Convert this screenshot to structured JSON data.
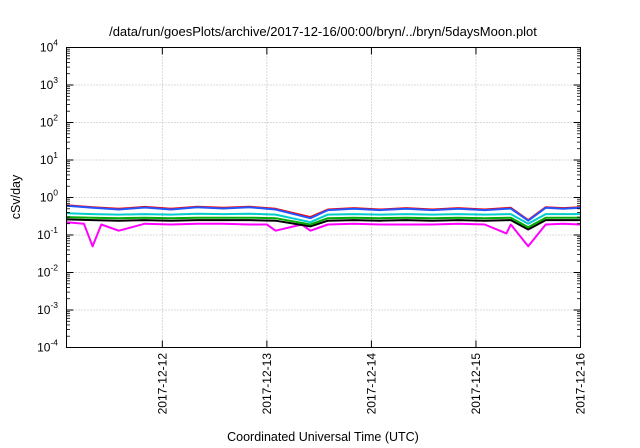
{
  "chart_data": {
    "type": "line",
    "title": "/data/run/goesPlots/archive/2017-12-16/00:00/bryn/../bryn/5daysMoon.plot",
    "xlabel": "Coordinated Universal Time (UTC)",
    "ylabel": "cSv/day",
    "y_scale": "log",
    "ylim": [
      0.0001,
      10000
    ],
    "y_ticks": [
      {
        "value": 0.0001,
        "base": "10",
        "exp": "-4"
      },
      {
        "value": 0.001,
        "base": "10",
        "exp": "-3"
      },
      {
        "value": 0.01,
        "base": "10",
        "exp": "-2"
      },
      {
        "value": 0.1,
        "base": "10",
        "exp": "-1"
      },
      {
        "value": 1,
        "base": "10",
        "exp": "0"
      },
      {
        "value": 10,
        "base": "10",
        "exp": "1"
      },
      {
        "value": 100,
        "base": "10",
        "exp": "2"
      },
      {
        "value": 1000,
        "base": "10",
        "exp": "3"
      },
      {
        "value": 10000,
        "base": "10",
        "exp": "4"
      }
    ],
    "xlim": [
      "2017-12-11 02:00",
      "2017-12-16 00:00"
    ],
    "x_ticks": [
      "2017-12-12",
      "2017-12-13",
      "2017-12-14",
      "2017-12-15",
      "2017-12-16"
    ],
    "grid": true,
    "legend": "none",
    "series": [
      {
        "color": "#ff00ff",
        "x": [
          "2017-12-11 02:00",
          "2017-12-11 06:00",
          "2017-12-11 08:00",
          "2017-12-11 10:00",
          "2017-12-11 14:00",
          "2017-12-11 20:00",
          "2017-12-12 02:00",
          "2017-12-12 08:00",
          "2017-12-12 14:00",
          "2017-12-12 20:00",
          "2017-12-13 00:00",
          "2017-12-13 02:00",
          "2017-12-13 08:00",
          "2017-12-13 10:00",
          "2017-12-13 14:00",
          "2017-12-13 20:00",
          "2017-12-14 02:00",
          "2017-12-14 08:00",
          "2017-12-14 14:00",
          "2017-12-14 20:00",
          "2017-12-15 02:00",
          "2017-12-15 07:00",
          "2017-12-15 08:00",
          "2017-12-15 12:00",
          "2017-12-15 16:00",
          "2017-12-15 20:00",
          "2017-12-16 00:00"
        ],
        "values": [
          0.22,
          0.2,
          0.05,
          0.19,
          0.13,
          0.2,
          0.19,
          0.2,
          0.2,
          0.19,
          0.19,
          0.13,
          0.19,
          0.13,
          0.19,
          0.2,
          0.19,
          0.19,
          0.19,
          0.2,
          0.19,
          0.11,
          0.19,
          0.05,
          0.19,
          0.2,
          0.19
        ]
      },
      {
        "color": "#000000",
        "x": [
          "2017-12-11 02:00",
          "2017-12-11 08:00",
          "2017-12-11 14:00",
          "2017-12-11 20:00",
          "2017-12-12 02:00",
          "2017-12-12 08:00",
          "2017-12-12 14:00",
          "2017-12-12 20:00",
          "2017-12-13 02:00",
          "2017-12-13 10:00",
          "2017-12-13 14:00",
          "2017-12-13 20:00",
          "2017-12-14 02:00",
          "2017-12-14 08:00",
          "2017-12-14 14:00",
          "2017-12-14 20:00",
          "2017-12-15 02:00",
          "2017-12-15 08:00",
          "2017-12-15 12:00",
          "2017-12-15 16:00",
          "2017-12-15 20:00",
          "2017-12-16 00:00"
        ],
        "values": [
          0.26,
          0.25,
          0.24,
          0.25,
          0.24,
          0.25,
          0.25,
          0.25,
          0.24,
          0.17,
          0.24,
          0.25,
          0.24,
          0.25,
          0.24,
          0.25,
          0.24,
          0.25,
          0.14,
          0.25,
          0.25,
          0.25
        ]
      },
      {
        "color": "#00aa00",
        "x": [
          "2017-12-11 02:00",
          "2017-12-11 08:00",
          "2017-12-11 14:00",
          "2017-12-11 20:00",
          "2017-12-12 02:00",
          "2017-12-12 08:00",
          "2017-12-12 14:00",
          "2017-12-12 20:00",
          "2017-12-13 02:00",
          "2017-12-13 10:00",
          "2017-12-13 14:00",
          "2017-12-13 20:00",
          "2017-12-14 02:00",
          "2017-12-14 08:00",
          "2017-12-14 14:00",
          "2017-12-14 20:00",
          "2017-12-15 02:00",
          "2017-12-15 08:00",
          "2017-12-15 12:00",
          "2017-12-15 16:00",
          "2017-12-15 20:00",
          "2017-12-16 00:00"
        ],
        "values": [
          0.3,
          0.29,
          0.28,
          0.29,
          0.28,
          0.29,
          0.29,
          0.29,
          0.28,
          0.19,
          0.28,
          0.29,
          0.28,
          0.29,
          0.28,
          0.29,
          0.28,
          0.29,
          0.16,
          0.29,
          0.29,
          0.29
        ]
      },
      {
        "color": "#00cccc",
        "x": [
          "2017-12-11 02:00",
          "2017-12-11 08:00",
          "2017-12-11 14:00",
          "2017-12-11 20:00",
          "2017-12-12 02:00",
          "2017-12-12 08:00",
          "2017-12-12 14:00",
          "2017-12-12 20:00",
          "2017-12-13 02:00",
          "2017-12-13 10:00",
          "2017-12-13 14:00",
          "2017-12-13 20:00",
          "2017-12-14 02:00",
          "2017-12-14 08:00",
          "2017-12-14 14:00",
          "2017-12-14 20:00",
          "2017-12-15 02:00",
          "2017-12-15 08:00",
          "2017-12-15 12:00",
          "2017-12-15 16:00",
          "2017-12-15 20:00",
          "2017-12-16 00:00"
        ],
        "values": [
          0.38,
          0.36,
          0.35,
          0.36,
          0.35,
          0.37,
          0.36,
          0.37,
          0.35,
          0.22,
          0.35,
          0.36,
          0.35,
          0.36,
          0.35,
          0.36,
          0.35,
          0.36,
          0.2,
          0.36,
          0.36,
          0.36
        ]
      },
      {
        "color": "#ff0000",
        "x": [
          "2017-12-11 02:00",
          "2017-12-11 08:00",
          "2017-12-11 14:00",
          "2017-12-11 20:00",
          "2017-12-12 02:00",
          "2017-12-12 08:00",
          "2017-12-12 14:00",
          "2017-12-12 20:00",
          "2017-12-13 02:00",
          "2017-12-13 10:00",
          "2017-12-13 14:00",
          "2017-12-13 20:00",
          "2017-12-14 02:00",
          "2017-12-14 08:00",
          "2017-12-14 14:00",
          "2017-12-14 20:00",
          "2017-12-15 02:00",
          "2017-12-15 08:00",
          "2017-12-15 12:00",
          "2017-12-15 16:00",
          "2017-12-15 20:00",
          "2017-12-16 00:00"
        ],
        "values": [
          0.62,
          0.55,
          0.5,
          0.56,
          0.5,
          0.57,
          0.53,
          0.57,
          0.5,
          0.3,
          0.48,
          0.52,
          0.48,
          0.52,
          0.48,
          0.52,
          0.48,
          0.53,
          0.25,
          0.55,
          0.52,
          0.55
        ]
      },
      {
        "color": "#2255ff",
        "x": [
          "2017-12-11 02:00",
          "2017-12-11 08:00",
          "2017-12-11 14:00",
          "2017-12-11 20:00",
          "2017-12-12 02:00",
          "2017-12-12 08:00",
          "2017-12-12 14:00",
          "2017-12-12 20:00",
          "2017-12-13 02:00",
          "2017-12-13 10:00",
          "2017-12-13 14:00",
          "2017-12-13 20:00",
          "2017-12-14 02:00",
          "2017-12-14 08:00",
          "2017-12-14 14:00",
          "2017-12-14 20:00",
          "2017-12-15 02:00",
          "2017-12-15 08:00",
          "2017-12-15 12:00",
          "2017-12-15 16:00",
          "2017-12-15 20:00",
          "2017-12-16 00:00"
        ],
        "values": [
          0.6,
          0.53,
          0.48,
          0.54,
          0.48,
          0.55,
          0.51,
          0.55,
          0.48,
          0.28,
          0.46,
          0.5,
          0.46,
          0.5,
          0.46,
          0.5,
          0.46,
          0.51,
          0.24,
          0.53,
          0.5,
          0.53
        ]
      }
    ]
  }
}
